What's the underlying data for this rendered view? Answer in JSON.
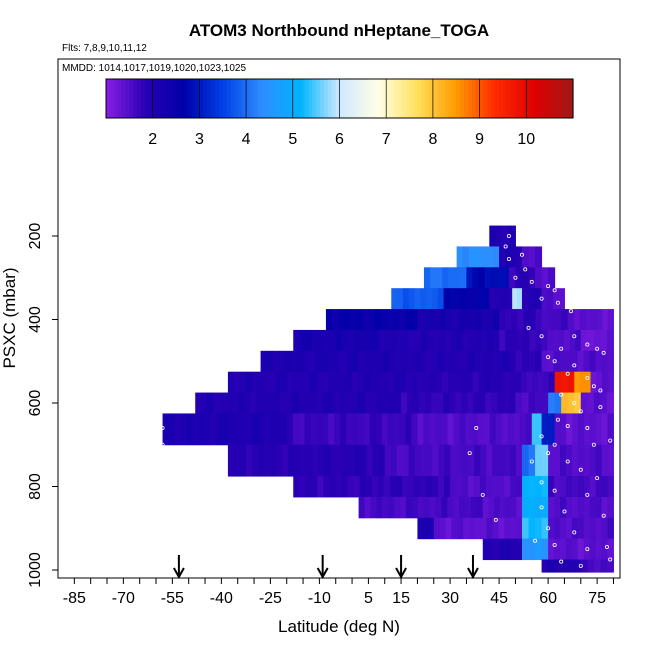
{
  "chart_data": {
    "type": "heatmap",
    "title": "ATOM3 Northbound nHeptane_TOGA",
    "flights_note": "Flts: 7,8,9,10,11,12",
    "mmdd_note": "MMDD: 1014,1017,1019,1020,1023,1025",
    "xlabel": "Latitude (deg N)",
    "ylabel": "PSXC (mbar)",
    "xlim": [
      -90,
      82
    ],
    "ylim": [
      1000,
      0
    ],
    "x_ticks": [
      -85,
      -70,
      -55,
      -40,
      -25,
      -10,
      5,
      15,
      30,
      45,
      60,
      75
    ],
    "x_tick_labels": [
      "-85",
      "-70",
      "-55",
      "-40",
      "-25",
      "-10",
      "5",
      "15",
      "30",
      "45",
      "60",
      "75"
    ],
    "y_ticks": [
      200,
      400,
      600,
      800,
      1000
    ],
    "y_tick_labels": [
      "200",
      "400",
      "600",
      "800",
      "1000"
    ],
    "colorbar": {
      "range": [
        1,
        11
      ],
      "ticks": [
        2,
        3,
        4,
        5,
        6,
        7,
        8,
        9,
        10
      ],
      "tick_labels": [
        "2",
        "3",
        "4",
        "5",
        "6",
        "7",
        "8",
        "9",
        "10"
      ],
      "stops": [
        "#8a1ee6",
        "#2a00b5",
        "#0000a8",
        "#0040e6",
        "#2f8cff",
        "#00b4ff",
        "#cfe9ff",
        "#ffffe6",
        "#ffe05a",
        "#ff9a00",
        "#ff2a00",
        "#e00000",
        "#a01818"
      ]
    },
    "arrows_lat": [
      -53,
      -9,
      15,
      37
    ],
    "bands": [
      {
        "p_top": 175,
        "p_bot": 225,
        "lat_min": 42,
        "lat_max": 50,
        "segs": [
          [
            42,
            50,
            2.0
          ]
        ]
      },
      {
        "p_top": 225,
        "p_bot": 275,
        "lat_min": 32,
        "lat_max": 58,
        "segs": [
          [
            32,
            45,
            4.4
          ],
          [
            45,
            52,
            2.0
          ],
          [
            52,
            58,
            1.5
          ]
        ]
      },
      {
        "p_top": 275,
        "p_bot": 325,
        "lat_min": 22,
        "lat_max": 62,
        "segs": [
          [
            22,
            35,
            4.0
          ],
          [
            35,
            48,
            2.8
          ],
          [
            48,
            56,
            1.8
          ],
          [
            56,
            62,
            1.5
          ]
        ]
      },
      {
        "p_top": 325,
        "p_bot": 375,
        "lat_min": 12,
        "lat_max": 65,
        "segs": [
          [
            12,
            28,
            3.8
          ],
          [
            28,
            42,
            2.6
          ],
          [
            42,
            49,
            2.0
          ],
          [
            49,
            52,
            5.8
          ],
          [
            52,
            58,
            2.0
          ],
          [
            58,
            65,
            1.5
          ]
        ]
      },
      {
        "p_top": 375,
        "p_bot": 425,
        "lat_min": -8,
        "lat_max": 80,
        "segs": [
          [
            -8,
            20,
            2.5
          ],
          [
            20,
            45,
            2.2
          ],
          [
            45,
            58,
            1.8
          ],
          [
            58,
            68,
            1.6
          ],
          [
            68,
            80,
            1.4
          ]
        ]
      },
      {
        "p_top": 425,
        "p_bot": 475,
        "lat_min": -18,
        "lat_max": 80,
        "segs": [
          [
            -18,
            10,
            2.2
          ],
          [
            10,
            45,
            2.0
          ],
          [
            45,
            58,
            1.8
          ],
          [
            58,
            70,
            1.5
          ],
          [
            70,
            80,
            1.3
          ]
        ]
      },
      {
        "p_top": 475,
        "p_bot": 525,
        "lat_min": -28,
        "lat_max": 80,
        "segs": [
          [
            -28,
            15,
            2.1
          ],
          [
            15,
            50,
            2.0
          ],
          [
            50,
            58,
            1.8
          ],
          [
            58,
            80,
            1.5
          ]
        ]
      },
      {
        "p_top": 525,
        "p_bot": 575,
        "lat_min": -38,
        "lat_max": 80,
        "segs": [
          [
            -38,
            20,
            2.0
          ],
          [
            20,
            50,
            1.9
          ],
          [
            50,
            62,
            1.7
          ],
          [
            62,
            68,
            9.8
          ],
          [
            68,
            73,
            8.5
          ],
          [
            73,
            80,
            1.4
          ]
        ]
      },
      {
        "p_top": 575,
        "p_bot": 625,
        "lat_min": -48,
        "lat_max": 80,
        "segs": [
          [
            -48,
            15,
            2.0
          ],
          [
            15,
            50,
            1.8
          ],
          [
            50,
            60,
            1.6
          ],
          [
            60,
            64,
            4.2
          ],
          [
            64,
            70,
            8.0
          ],
          [
            70,
            80,
            1.4
          ]
        ]
      },
      {
        "p_top": 625,
        "p_bot": 700,
        "lat_min": -58,
        "lat_max": 80,
        "segs": [
          [
            -58,
            -20,
            2.1
          ],
          [
            -20,
            20,
            1.7
          ],
          [
            20,
            55,
            1.5
          ],
          [
            55,
            58,
            5.5
          ],
          [
            58,
            62,
            3.0
          ],
          [
            62,
            80,
            1.4
          ]
        ]
      },
      {
        "p_top": 700,
        "p_bot": 775,
        "lat_min": -38,
        "lat_max": 80,
        "segs": [
          [
            -38,
            10,
            1.9
          ],
          [
            10,
            52,
            1.6
          ],
          [
            52,
            56,
            4.0
          ],
          [
            56,
            60,
            5.6
          ],
          [
            60,
            80,
            1.5
          ]
        ]
      },
      {
        "p_top": 775,
        "p_bot": 825,
        "lat_min": -18,
        "lat_max": 80,
        "segs": [
          [
            -18,
            30,
            1.8
          ],
          [
            30,
            52,
            1.5
          ],
          [
            52,
            60,
            5.2
          ],
          [
            60,
            80,
            1.6
          ]
        ]
      },
      {
        "p_top": 825,
        "p_bot": 875,
        "lat_min": 2,
        "lat_max": 80,
        "segs": [
          [
            2,
            40,
            1.6
          ],
          [
            40,
            52,
            1.5
          ],
          [
            52,
            60,
            5.0
          ],
          [
            60,
            80,
            1.5
          ]
        ]
      },
      {
        "p_top": 875,
        "p_bot": 925,
        "lat_min": 20,
        "lat_max": 80,
        "segs": [
          [
            20,
            25,
            2.1
          ],
          [
            25,
            52,
            1.4
          ],
          [
            52,
            60,
            5.3
          ],
          [
            60,
            80,
            1.5
          ]
        ]
      },
      {
        "p_top": 925,
        "p_bot": 975,
        "lat_min": 40,
        "lat_max": 80,
        "segs": [
          [
            40,
            52,
            2.0
          ],
          [
            52,
            60,
            4.5
          ],
          [
            60,
            80,
            1.4
          ]
        ]
      },
      {
        "p_top": 975,
        "p_bot": 1005,
        "lat_min": 58,
        "lat_max": 80,
        "segs": [
          [
            58,
            70,
            2.0
          ],
          [
            70,
            80,
            1.6
          ]
        ]
      }
    ],
    "points": [
      [
        48,
        200
      ],
      [
        47,
        225
      ],
      [
        48,
        255
      ],
      [
        52,
        245
      ],
      [
        53,
        280
      ],
      [
        50,
        300
      ],
      [
        55,
        310
      ],
      [
        60,
        320
      ],
      [
        62,
        330
      ],
      [
        58,
        350
      ],
      [
        63,
        360
      ],
      [
        67,
        380
      ],
      [
        54,
        420
      ],
      [
        58,
        440
      ],
      [
        68,
        440
      ],
      [
        72,
        460
      ],
      [
        75,
        470
      ],
      [
        77,
        480
      ],
      [
        64,
        470
      ],
      [
        60,
        490
      ],
      [
        62,
        500
      ],
      [
        68,
        510
      ],
      [
        66,
        530
      ],
      [
        72,
        540
      ],
      [
        74,
        560
      ],
      [
        76,
        570
      ],
      [
        64,
        580
      ],
      [
        68,
        600
      ],
      [
        70,
        620
      ],
      [
        76,
        610
      ],
      [
        63,
        640
      ],
      [
        66,
        655
      ],
      [
        72,
        660
      ],
      [
        58,
        680
      ],
      [
        62,
        700
      ],
      [
        74,
        700
      ],
      [
        79,
        690
      ],
      [
        60,
        720
      ],
      [
        55,
        740
      ],
      [
        66,
        740
      ],
      [
        70,
        760
      ],
      [
        75,
        780
      ],
      [
        58,
        790
      ],
      [
        62,
        810
      ],
      [
        72,
        820
      ],
      [
        58,
        850
      ],
      [
        65,
        860
      ],
      [
        77,
        870
      ],
      [
        60,
        900
      ],
      [
        68,
        910
      ],
      [
        56,
        930
      ],
      [
        62,
        940
      ],
      [
        72,
        950
      ],
      [
        78,
        945
      ],
      [
        64,
        980
      ],
      [
        70,
        990
      ],
      [
        79,
        975
      ],
      [
        -58,
        660
      ],
      [
        -58,
        700
      ],
      [
        36,
        720
      ],
      [
        38,
        660
      ],
      [
        40,
        820
      ],
      [
        44,
        880
      ]
    ]
  }
}
